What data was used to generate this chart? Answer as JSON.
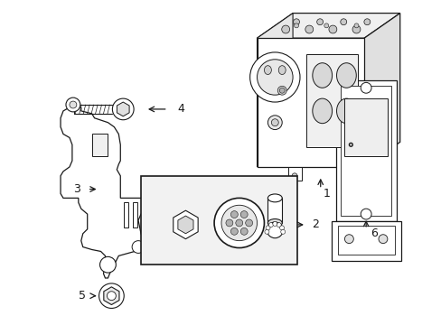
{
  "background_color": "#ffffff",
  "line_color": "#1a1a1a",
  "gray_fill": "#e8e8e8",
  "light_fill": "#f4f4f4"
}
